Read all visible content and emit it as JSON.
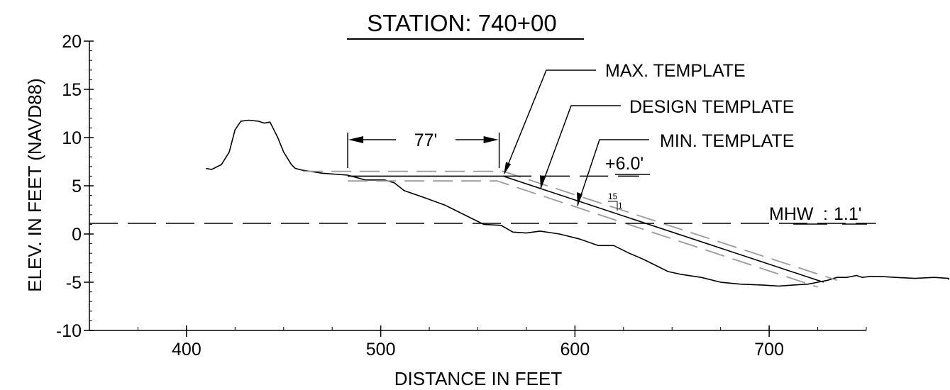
{
  "chart_data": {
    "type": "line",
    "title": "STATION: 740+00",
    "xlabel": "DISTANCE IN FEET",
    "ylabel": "ELEV. IN FEET (NAVD88)",
    "xlim": [
      350,
      750
    ],
    "ylim": [
      -10,
      20
    ],
    "x_ticks": [
      400,
      500,
      600,
      700
    ],
    "x_tick_labels": [
      "400",
      "500",
      "600",
      "700"
    ],
    "y_ticks": [
      -10,
      -5,
      0,
      5,
      10,
      15,
      20
    ],
    "y_tick_labels": [
      "-10",
      "-5",
      "0",
      "5",
      "10",
      "15",
      "20"
    ],
    "grid": false,
    "legend": "none",
    "series": [
      {
        "style": "solid-black",
        "x": [
          410,
          413,
          418,
          422,
          425,
          428,
          432,
          437,
          440,
          443,
          447,
          450,
          454,
          456,
          460,
          470,
          483,
          492,
          502,
          507,
          512,
          522,
          533,
          545,
          553,
          562,
          568,
          575,
          582,
          592,
          602,
          612,
          620,
          628,
          635,
          642,
          648,
          655,
          665,
          675,
          685,
          697,
          705,
          712,
          720,
          725,
          730,
          735,
          740,
          745,
          748,
          752,
          757,
          765,
          775,
          785,
          795,
          800,
          805
        ],
        "y": [
          6.8,
          6.7,
          7.2,
          8.5,
          10.8,
          11.7,
          11.8,
          11.7,
          11.5,
          11.6,
          10.0,
          8.5,
          7.2,
          6.8,
          6.6,
          6.3,
          6.1,
          5.6,
          5.6,
          5.3,
          4.5,
          3.8,
          3.0,
          1.8,
          1.0,
          0.9,
          0.2,
          0.1,
          0.3,
          0.0,
          -0.5,
          -1.2,
          -1.2,
          -2.0,
          -2.6,
          -3.3,
          -3.9,
          -4.2,
          -4.5,
          -5.0,
          -5.2,
          -5.3,
          -5.4,
          -5.3,
          -5.2,
          -5.0,
          -4.8,
          -4.5,
          -4.5,
          -4.3,
          -4.5,
          -4.4,
          -4.4,
          -4.5,
          -4.6,
          -4.5,
          -4.6,
          -4.7,
          -4.6
        ]
      },
      {
        "style": "solid-black",
        "x": [
          483,
          563,
          728
        ],
        "y": [
          6.0,
          6.0,
          -5.0
        ]
      },
      {
        "style": "dashed-grey",
        "x": [
          460,
          563,
          735
        ],
        "y": [
          6.5,
          6.5,
          -4.8
        ]
      },
      {
        "style": "dashed-grey",
        "x": [
          483,
          560,
          725
        ],
        "y": [
          5.5,
          5.5,
          -5.5
        ]
      },
      {
        "style": "dashed-black",
        "x": [
          350,
          755
        ],
        "y": [
          1.1,
          1.1
        ]
      },
      {
        "style": "dashed-black",
        "x": [
          563,
          633
        ],
        "y": [
          6.0,
          6.0
        ]
      }
    ],
    "annotations": {
      "max_template": "MAX. TEMPLATE",
      "design_template": "DESIGN TEMPLATE",
      "min_template": "MIN. TEMPLATE",
      "width": "77'",
      "elevation": "+6.0'",
      "mhw_prefix": "MHW",
      "mhw_sep": ":",
      "mhw_value": "1.1'",
      "slope_run": "15",
      "slope_rise": "1"
    },
    "dimension_x": [
      483,
      561
    ]
  }
}
